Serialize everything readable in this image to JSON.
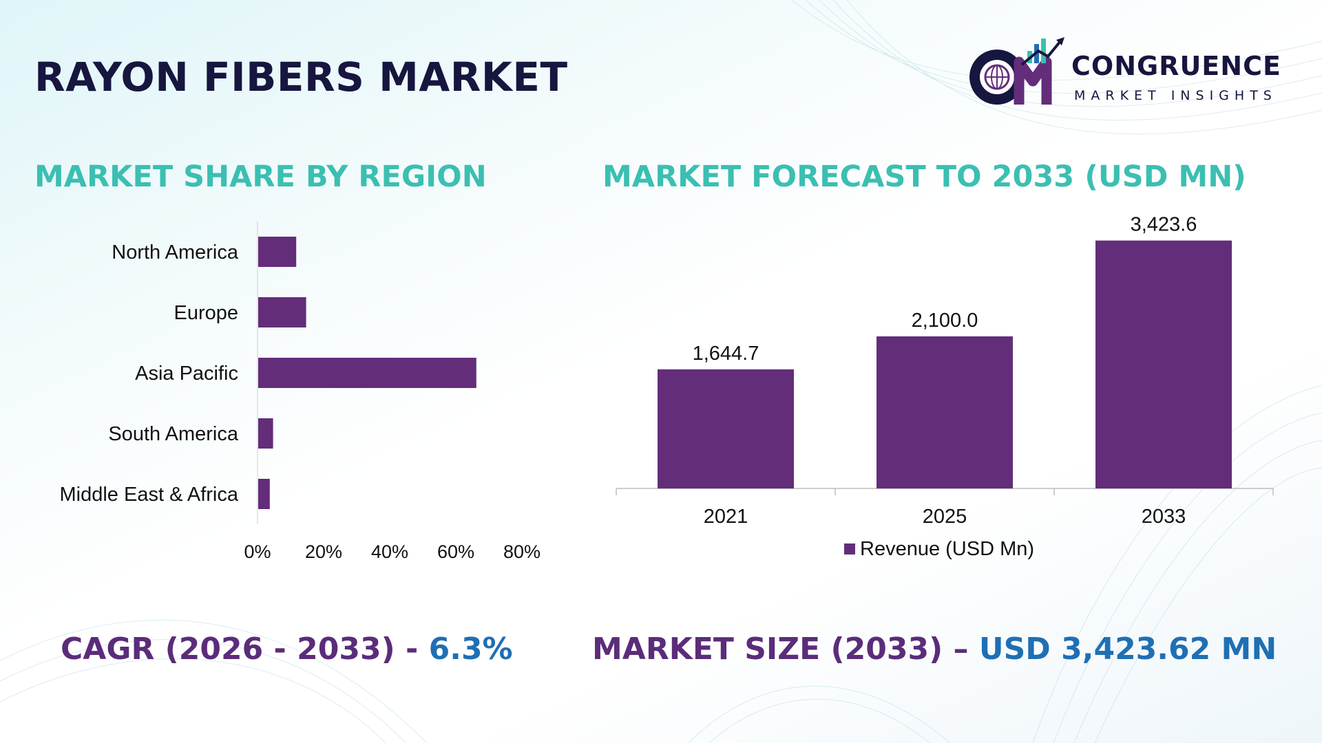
{
  "header": {
    "title": "RAYON FIBERS MARKET",
    "logo_name": "CONGRUENCE",
    "logo_sub": "MARKET INSIGHTS"
  },
  "sections": {
    "region_title": "MARKET SHARE BY REGION",
    "forecast_title": "MARKET FORECAST TO 2033 (USD MN)"
  },
  "chart_data": [
    {
      "type": "bar",
      "orientation": "horizontal",
      "categories": [
        "North America",
        "Europe",
        "Asia Pacific",
        "South America",
        "Middle East & Africa"
      ],
      "values": [
        11.5,
        14.5,
        66,
        4.5,
        3.5
      ],
      "xlim": [
        0,
        80
      ],
      "xticks": [
        "0%",
        "20%",
        "40%",
        "60%",
        "80%"
      ],
      "bar_color": "#632d7a",
      "grid": false
    },
    {
      "type": "bar",
      "categories": [
        "2021",
        "2025",
        "2033"
      ],
      "values": [
        1644.7,
        2100.0,
        3423.6
      ],
      "data_labels": [
        "1,644.7",
        "2,100.0",
        "3,423.6"
      ],
      "ylim": [
        0,
        3800
      ],
      "legend": "Revenue (USD Mn)",
      "legend_position": "bottom",
      "bar_color": "#632d7a",
      "grid": false
    }
  ],
  "kpis": {
    "cagr_label": "CAGR (2026 - 2033) - ",
    "cagr_value": "6.3%",
    "size_label": "MARKET SIZE (2033) – ",
    "size_value": "USD 3,423.62 MN"
  },
  "colors": {
    "title": "#16163f",
    "section_title": "#3bbfb2",
    "bar": "#632d7a",
    "kpi_label": "#5b2c7a",
    "kpi_value": "#1f6fb4"
  }
}
